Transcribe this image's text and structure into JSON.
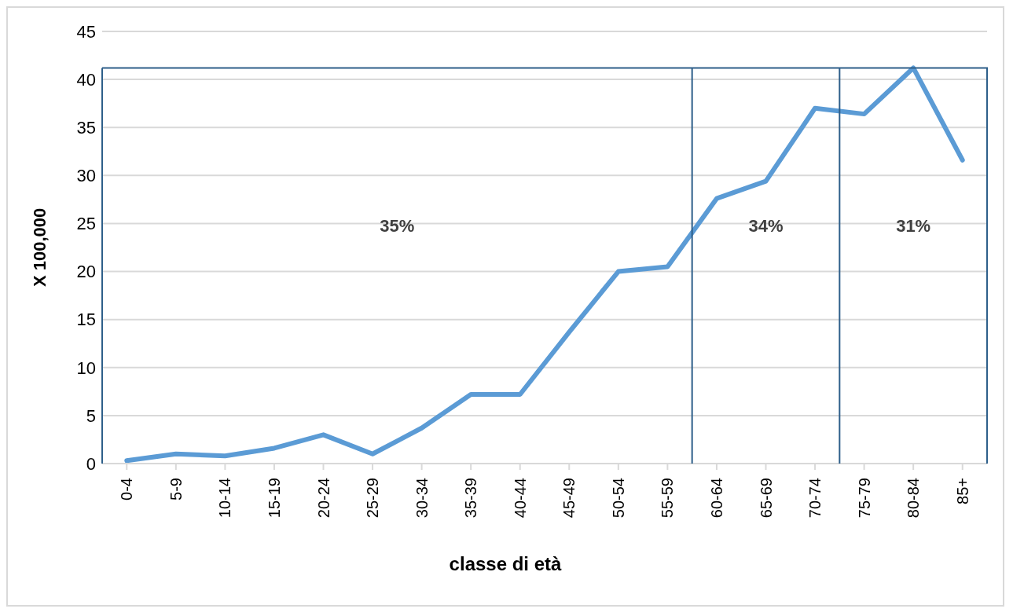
{
  "chart_data": {
    "type": "line",
    "xlabel": "classe di età",
    "ylabel": "X 100,000",
    "categories": [
      "0-4",
      "5-9",
      "10-14",
      "15-19",
      "20-24",
      "25-29",
      "30-34",
      "35-39",
      "40-44",
      "45-49",
      "50-54",
      "55-59",
      "60-64",
      "65-69",
      "70-74",
      "75-79",
      "80-84",
      "85+"
    ],
    "series": [
      {
        "color": "#5b9bd5",
        "values": [
          0.3,
          1.0,
          0.8,
          1.6,
          3.0,
          1.0,
          3.7,
          7.2,
          7.2,
          13.7,
          20.0,
          20.5,
          27.6,
          29.4,
          37.0,
          36.4,
          41.2,
          31.6
        ]
      }
    ],
    "ylim": [
      0,
      45
    ],
    "yticks": [
      0,
      5,
      10,
      15,
      20,
      25,
      30,
      35,
      40,
      45
    ],
    "grid": "y",
    "legend": false,
    "marker": "none",
    "line_style": "solid",
    "annotations": [
      "35%",
      "34%",
      "31%"
    ]
  }
}
